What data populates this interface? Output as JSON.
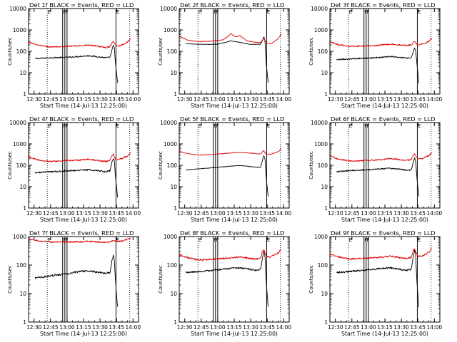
{
  "colors": {
    "events": "#000000",
    "lld": "#e00000",
    "axes": "#000000",
    "background": "#ffffff"
  },
  "common": {
    "xlabel": "Start Time (14-Jul-13 12:25:00)",
    "ylabel": "Counts/sec",
    "x_tick_labels": [
      "12:30",
      "12:45",
      "13:00",
      "13:15",
      "13:30",
      "13:45",
      "14:00"
    ],
    "y_tick_labels": [
      "1",
      "10",
      "100",
      "1000",
      "10000"
    ],
    "flag_labels": [
      "E",
      "F",
      "F",
      "E"
    ]
  },
  "chart_data": [
    {
      "type": "line",
      "title": "Det 1f BLACK = Events, RED = LLD",
      "x_unit": "minutes after 12:25:00",
      "ylim": [
        1,
        10000
      ],
      "log_y": true,
      "xlim": [
        0,
        100
      ],
      "vlines_dotted": [
        17,
        92
      ],
      "vlines_solid": [
        31,
        33,
        35,
        79.5
      ],
      "series": [
        {
          "name": "Events",
          "color": "#000000",
          "noise": 0.03,
          "x": [
            6,
            20,
            35,
            45,
            55,
            64,
            70,
            74,
            76,
            77,
            78,
            79,
            81
          ],
          "y": [
            45,
            50,
            52,
            57,
            62,
            55,
            50,
            52,
            120,
            190,
            150,
            30,
            3
          ]
        },
        {
          "name": "LLD",
          "color": "#e00000",
          "noise": 0.03,
          "x": [
            0,
            8,
            18,
            30,
            45,
            55,
            62,
            70,
            74,
            75.5,
            77,
            78,
            80,
            84,
            90,
            93
          ],
          "y": [
            270,
            200,
            160,
            165,
            180,
            200,
            175,
            150,
            165,
            230,
            300,
            240,
            175,
            190,
            270,
            400
          ]
        }
      ]
    },
    {
      "type": "line",
      "title": "Det 2f BLACK = Events, RED = LLD",
      "x_unit": "minutes after 12:25:00",
      "ylim": [
        1,
        10000
      ],
      "log_y": true,
      "xlim": [
        0,
        100
      ],
      "vlines_dotted": [
        17,
        92
      ],
      "vlines_solid": [
        31,
        33,
        35,
        79.5
      ],
      "series": [
        {
          "name": "Events",
          "color": "#000000",
          "noise": 0.01,
          "x": [
            6,
            15,
            25,
            35,
            42,
            47,
            50,
            54,
            60,
            65,
            70,
            74,
            76,
            77,
            78,
            79,
            81
          ],
          "y": [
            230,
            215,
            210,
            215,
            260,
            310,
            290,
            270,
            230,
            210,
            210,
            215,
            350,
            480,
            300,
            30,
            3
          ]
        },
        {
          "name": "LLD",
          "color": "#e00000",
          "noise": 0.012,
          "x": [
            0,
            8,
            18,
            30,
            40,
            45,
            47,
            50,
            53,
            55,
            58,
            62,
            70,
            74,
            77,
            78,
            80,
            84,
            90,
            93
          ],
          "y": [
            500,
            330,
            285,
            300,
            350,
            520,
            700,
            500,
            480,
            550,
            420,
            300,
            260,
            260,
            400,
            320,
            230,
            230,
            400,
            650
          ]
        }
      ]
    },
    {
      "type": "line",
      "title": "Det 3f BLACK = Events, RED = LLD",
      "x_unit": "minutes after 12:25:00",
      "ylim": [
        1,
        10000
      ],
      "log_y": true,
      "xlim": [
        0,
        100
      ],
      "vlines_dotted": [
        17,
        92
      ],
      "vlines_solid": [
        31,
        33,
        35,
        79.5
      ],
      "series": [
        {
          "name": "Events",
          "color": "#000000",
          "noise": 0.03,
          "x": [
            6,
            20,
            35,
            45,
            55,
            64,
            70,
            74,
            76,
            77,
            78,
            79,
            81
          ],
          "y": [
            40,
            45,
            48,
            52,
            58,
            52,
            48,
            50,
            100,
            140,
            110,
            30,
            3
          ]
        },
        {
          "name": "LLD",
          "color": "#e00000",
          "noise": 0.03,
          "x": [
            0,
            8,
            18,
            30,
            45,
            55,
            62,
            70,
            74,
            75.5,
            77,
            78,
            80,
            84,
            90,
            93
          ],
          "y": [
            280,
            200,
            170,
            175,
            190,
            215,
            200,
            190,
            200,
            250,
            300,
            240,
            200,
            220,
            290,
            420
          ]
        }
      ]
    },
    {
      "type": "line",
      "title": "Det 4f BLACK = Events, RED = LLD",
      "x_unit": "minutes after 12:25:00",
      "ylim": [
        1,
        10000
      ],
      "log_y": true,
      "xlim": [
        0,
        100
      ],
      "vlines_dotted": [
        17,
        92
      ],
      "vlines_solid": [
        31,
        33,
        35,
        79.5
      ],
      "series": [
        {
          "name": "Events",
          "color": "#000000",
          "noise": 0.035,
          "x": [
            6,
            20,
            35,
            45,
            55,
            64,
            70,
            74,
            76,
            77,
            78,
            79,
            81
          ],
          "y": [
            45,
            50,
            55,
            58,
            62,
            55,
            50,
            55,
            150,
            200,
            170,
            30,
            3
          ]
        },
        {
          "name": "LLD",
          "color": "#e00000",
          "noise": 0.035,
          "x": [
            0,
            8,
            18,
            30,
            45,
            55,
            62,
            70,
            74,
            75.5,
            77,
            78,
            80,
            84,
            90,
            93
          ],
          "y": [
            250,
            180,
            150,
            160,
            175,
            190,
            170,
            150,
            170,
            250,
            320,
            250,
            180,
            200,
            270,
            400
          ]
        }
      ]
    },
    {
      "type": "line",
      "title": "Det 5f BLACK = Events, RED = LLD",
      "x_unit": "minutes after 12:25:00",
      "ylim": [
        1,
        10000
      ],
      "log_y": true,
      "xlim": [
        0,
        100
      ],
      "vlines_dotted": [
        17,
        92
      ],
      "vlines_solid": [
        31,
        33,
        35,
        79.5
      ],
      "series": [
        {
          "name": "Events",
          "color": "#000000",
          "noise": 0.012,
          "x": [
            6,
            20,
            35,
            45,
            55,
            64,
            70,
            74,
            76,
            77,
            78,
            79,
            81
          ],
          "y": [
            60,
            70,
            80,
            90,
            98,
            88,
            82,
            80,
            200,
            280,
            200,
            30,
            3
          ]
        },
        {
          "name": "LLD",
          "color": "#e00000",
          "noise": 0.012,
          "x": [
            0,
            8,
            18,
            30,
            45,
            55,
            62,
            70,
            74,
            75.5,
            77,
            78,
            80,
            84,
            90,
            93
          ],
          "y": [
            450,
            350,
            300,
            320,
            370,
            400,
            380,
            350,
            340,
            420,
            480,
            380,
            320,
            340,
            430,
            600
          ]
        }
      ]
    },
    {
      "type": "line",
      "title": "Det 6f BLACK = Events, RED = LLD",
      "x_unit": "minutes after 12:25:00",
      "ylim": [
        1,
        10000
      ],
      "log_y": true,
      "xlim": [
        0,
        100
      ],
      "vlines_dotted": [
        17,
        92
      ],
      "vlines_solid": [
        31,
        33,
        35,
        79.5
      ],
      "series": [
        {
          "name": "Events",
          "color": "#000000",
          "noise": 0.03,
          "x": [
            6,
            20,
            35,
            45,
            55,
            64,
            70,
            74,
            76,
            77,
            78,
            79,
            81
          ],
          "y": [
            50,
            58,
            62,
            68,
            72,
            65,
            58,
            60,
            150,
            220,
            160,
            30,
            3
          ]
        },
        {
          "name": "LLD",
          "color": "#e00000",
          "noise": 0.03,
          "x": [
            0,
            8,
            18,
            30,
            45,
            55,
            62,
            70,
            74,
            75.5,
            77,
            78,
            80,
            84,
            90,
            93
          ],
          "y": [
            280,
            190,
            160,
            165,
            180,
            210,
            190,
            170,
            190,
            270,
            340,
            270,
            200,
            210,
            280,
            400
          ]
        }
      ]
    },
    {
      "type": "line",
      "title": "Det 7f BLACK = Events, RED = LLD",
      "x_unit": "minutes after 12:25:00",
      "ylim": [
        1,
        1000
      ],
      "log_y": true,
      "xlim": [
        0,
        100
      ],
      "vlines_dotted": [
        17,
        92
      ],
      "vlines_solid": [
        31,
        33,
        35,
        79.5
      ],
      "series": [
        {
          "name": "Events",
          "color": "#000000",
          "noise": 0.035,
          "x": [
            6,
            20,
            35,
            45,
            55,
            64,
            70,
            74,
            76,
            77,
            78,
            79,
            81
          ],
          "y": [
            35,
            42,
            50,
            58,
            62,
            55,
            50,
            55,
            150,
            220,
            160,
            30,
            3
          ]
        },
        {
          "name": "LLD",
          "color": "#e00000",
          "noise": 0.025,
          "x": [
            0,
            10,
            20,
            30,
            45,
            55,
            62,
            70,
            74,
            77,
            80,
            85,
            90,
            93
          ],
          "y": [
            800,
            700,
            650,
            640,
            650,
            680,
            650,
            630,
            640,
            720,
            680,
            700,
            800,
            900
          ]
        }
      ]
    },
    {
      "type": "line",
      "title": "Det 8f BLACK = Events, RED = LLD",
      "x_unit": "minutes after 12:25:00",
      "ylim": [
        1,
        1000
      ],
      "log_y": true,
      "xlim": [
        0,
        100
      ],
      "vlines_dotted": [
        17,
        92
      ],
      "vlines_solid": [
        31,
        33,
        35,
        79.5
      ],
      "series": [
        {
          "name": "Events",
          "color": "#000000",
          "noise": 0.03,
          "x": [
            6,
            20,
            35,
            45,
            55,
            64,
            70,
            74,
            76,
            77,
            78,
            79,
            81
          ],
          "y": [
            55,
            60,
            68,
            75,
            80,
            72,
            65,
            70,
            220,
            300,
            220,
            30,
            3
          ]
        },
        {
          "name": "LLD",
          "color": "#e00000",
          "noise": 0.03,
          "x": [
            0,
            8,
            18,
            30,
            45,
            55,
            62,
            70,
            74,
            75.5,
            77,
            78,
            80,
            84,
            90,
            93
          ],
          "y": [
            230,
            180,
            150,
            160,
            175,
            195,
            175,
            160,
            175,
            280,
            350,
            270,
            190,
            200,
            270,
            380
          ]
        }
      ]
    },
    {
      "type": "line",
      "title": "Det 9f BLACK = Events, RED = LLD",
      "x_unit": "minutes after 12:25:00",
      "ylim": [
        1,
        1000
      ],
      "log_y": true,
      "xlim": [
        0,
        100
      ],
      "vlines_dotted": [
        17,
        92
      ],
      "vlines_solid": [
        31,
        33,
        35,
        79.5
      ],
      "series": [
        {
          "name": "Events",
          "color": "#000000",
          "noise": 0.03,
          "x": [
            6,
            20,
            35,
            45,
            55,
            64,
            70,
            74,
            76,
            77,
            78,
            79,
            81
          ],
          "y": [
            55,
            60,
            68,
            75,
            80,
            70,
            65,
            70,
            220,
            330,
            230,
            30,
            3
          ]
        },
        {
          "name": "LLD",
          "color": "#e00000",
          "noise": 0.03,
          "x": [
            0,
            8,
            18,
            30,
            45,
            55,
            62,
            70,
            74,
            75.5,
            77,
            78,
            80,
            84,
            90,
            93
          ],
          "y": [
            240,
            190,
            165,
            170,
            185,
            205,
            185,
            170,
            185,
            300,
            380,
            290,
            200,
            210,
            280,
            400
          ]
        }
      ]
    }
  ]
}
